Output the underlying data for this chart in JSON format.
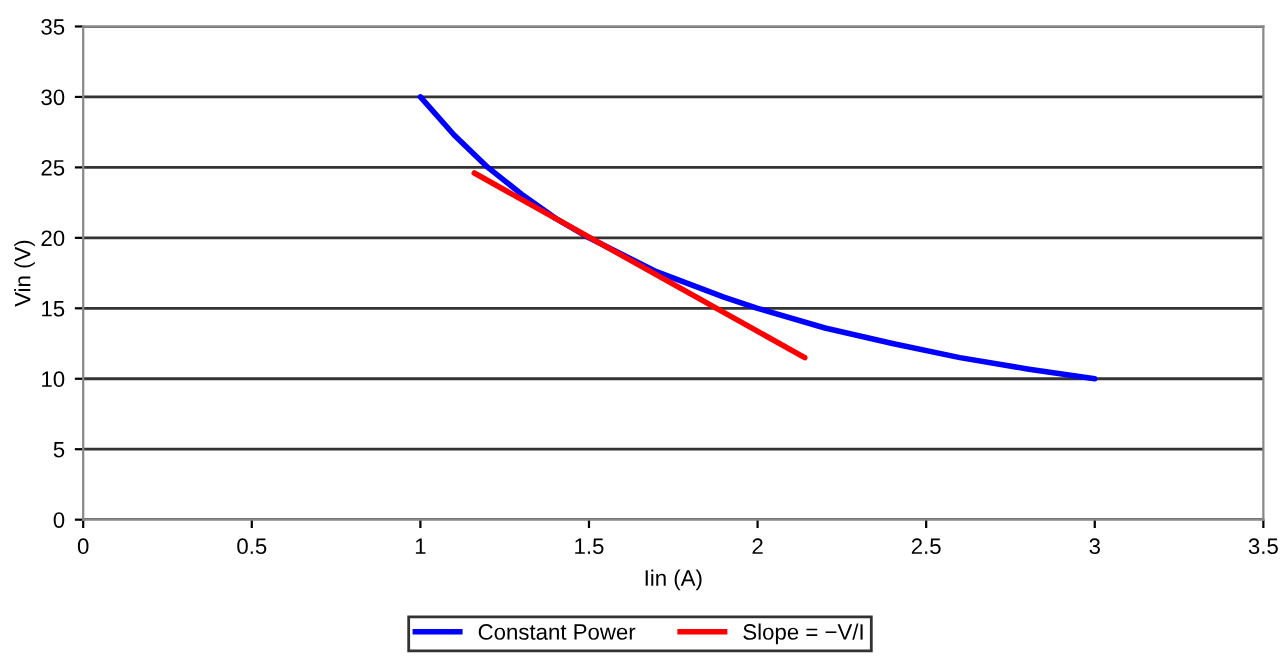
{
  "chart_data": {
    "type": "line",
    "xlabel": "Iin (A)",
    "ylabel": "Vin (V)",
    "series": [
      {
        "name": "Constant Power",
        "color": "#0000ff",
        "x": [
          1.0,
          1.1,
          1.2,
          1.3,
          1.4,
          1.5,
          1.6,
          1.7,
          1.8,
          1.9,
          2.0,
          2.2,
          2.4,
          2.6,
          2.8,
          3.0
        ],
        "values": [
          30,
          27.3,
          25,
          23.1,
          21.4,
          20,
          18.8,
          17.6,
          16.7,
          15.8,
          15,
          13.6,
          12.5,
          11.5,
          10.7,
          10
        ]
      },
      {
        "name": "Slope = −V/I",
        "color": "#ff0000",
        "x": [
          1.16,
          2.14
        ],
        "values": [
          24.6,
          11.5
        ]
      }
    ],
    "xlim": [
      0,
      3.5
    ],
    "xticks": [
      0,
      0.5,
      1,
      1.5,
      2,
      2.5,
      3,
      3.5
    ],
    "ylim": [
      0,
      35
    ],
    "yticks": [
      0,
      5,
      10,
      15,
      20,
      25,
      30,
      35
    ],
    "grid": "y",
    "legend": "bottom",
    "marker": "none",
    "line_style": "solid"
  }
}
